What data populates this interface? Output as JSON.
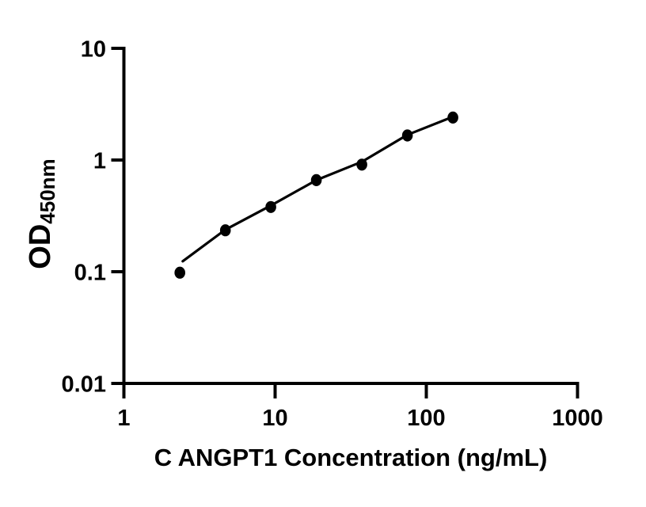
{
  "chart_data": {
    "type": "scatter",
    "title": "",
    "xlabel": "C ANGPT1 Concentration (ng/mL)",
    "ylabel_main": "OD",
    "ylabel_sub": "450nm",
    "x_scale": "log",
    "y_scale": "log",
    "xlim": [
      1,
      1000
    ],
    "ylim": [
      0.01,
      10
    ],
    "x_ticks": [
      1,
      10,
      100,
      1000
    ],
    "y_ticks": [
      10,
      1,
      0.1,
      0.01
    ],
    "grid": false,
    "legend": null,
    "series": [
      {
        "name": "standard_points",
        "type": "scatter",
        "marker": "filled-circle",
        "x": [
          2.344,
          4.688,
          9.375,
          18.75,
          37.5,
          75,
          150
        ],
        "y": [
          0.098,
          0.235,
          0.38,
          0.66,
          0.91,
          1.66,
          2.4
        ]
      },
      {
        "name": "fit_curve",
        "type": "line",
        "x": [
          2.45,
          4.69,
          9.4,
          18.75,
          37.5,
          75,
          150
        ],
        "y": [
          0.124,
          0.238,
          0.392,
          0.66,
          0.965,
          1.68,
          2.44
        ]
      }
    ],
    "colors": {
      "points": "#000000",
      "line": "#000000",
      "axis": "#000000",
      "background": "#ffffff"
    }
  }
}
